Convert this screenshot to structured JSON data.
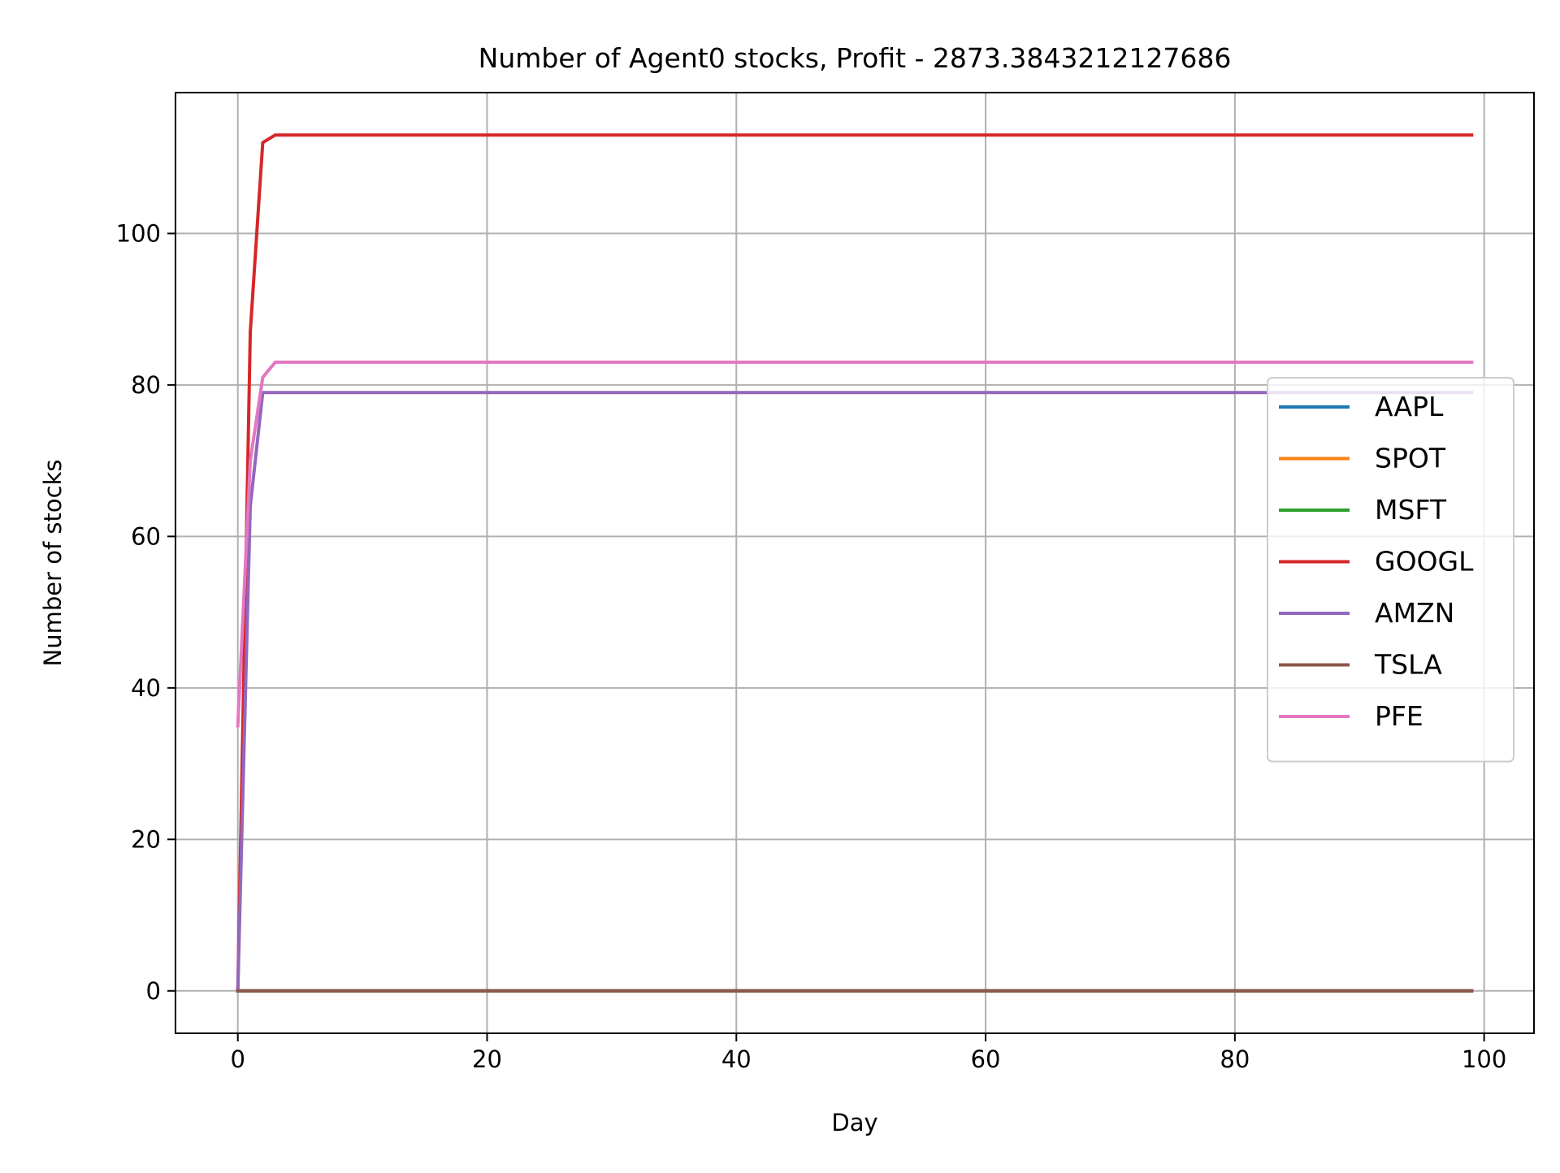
{
  "chart_data": {
    "type": "line",
    "title": "Number of Agent0 stocks, Profit - 2873.3843212127686",
    "xlabel": "Day",
    "ylabel": "Number of stocks",
    "xlim": [
      -5,
      104
    ],
    "ylim": [
      -5.6,
      118.6
    ],
    "xticks": [
      0,
      20,
      40,
      60,
      80,
      100
    ],
    "yticks": [
      0,
      20,
      40,
      60,
      80,
      100
    ],
    "grid": true,
    "legend_position": "center-right",
    "x_start": 0,
    "x_end": 99,
    "series": [
      {
        "name": "AAPL",
        "color": "#1f77b4",
        "points": [
          [
            0,
            0
          ],
          [
            99,
            0
          ]
        ]
      },
      {
        "name": "SPOT",
        "color": "#ff7f0e",
        "points": [
          [
            0,
            0
          ],
          [
            99,
            0
          ]
        ]
      },
      {
        "name": "MSFT",
        "color": "#2ca02c",
        "points": [
          [
            0,
            0
          ],
          [
            99,
            0
          ]
        ]
      },
      {
        "name": "GOOGL",
        "color": "#d62728",
        "points": [
          [
            0,
            0
          ],
          [
            1,
            87
          ],
          [
            2,
            112
          ],
          [
            3,
            113
          ],
          [
            99,
            113
          ]
        ]
      },
      {
        "name": "AMZN",
        "color": "#9467bd",
        "points": [
          [
            0,
            0
          ],
          [
            1,
            64
          ],
          [
            2,
            79
          ],
          [
            99,
            79
          ]
        ]
      },
      {
        "name": "TSLA",
        "color": "#8c564b",
        "points": [
          [
            0,
            0
          ],
          [
            99,
            0
          ]
        ]
      },
      {
        "name": "PFE",
        "color": "#e377c2",
        "points": [
          [
            0,
            35
          ],
          [
            1,
            70
          ],
          [
            2,
            81
          ],
          [
            3,
            83
          ],
          [
            99,
            83
          ]
        ]
      }
    ]
  }
}
